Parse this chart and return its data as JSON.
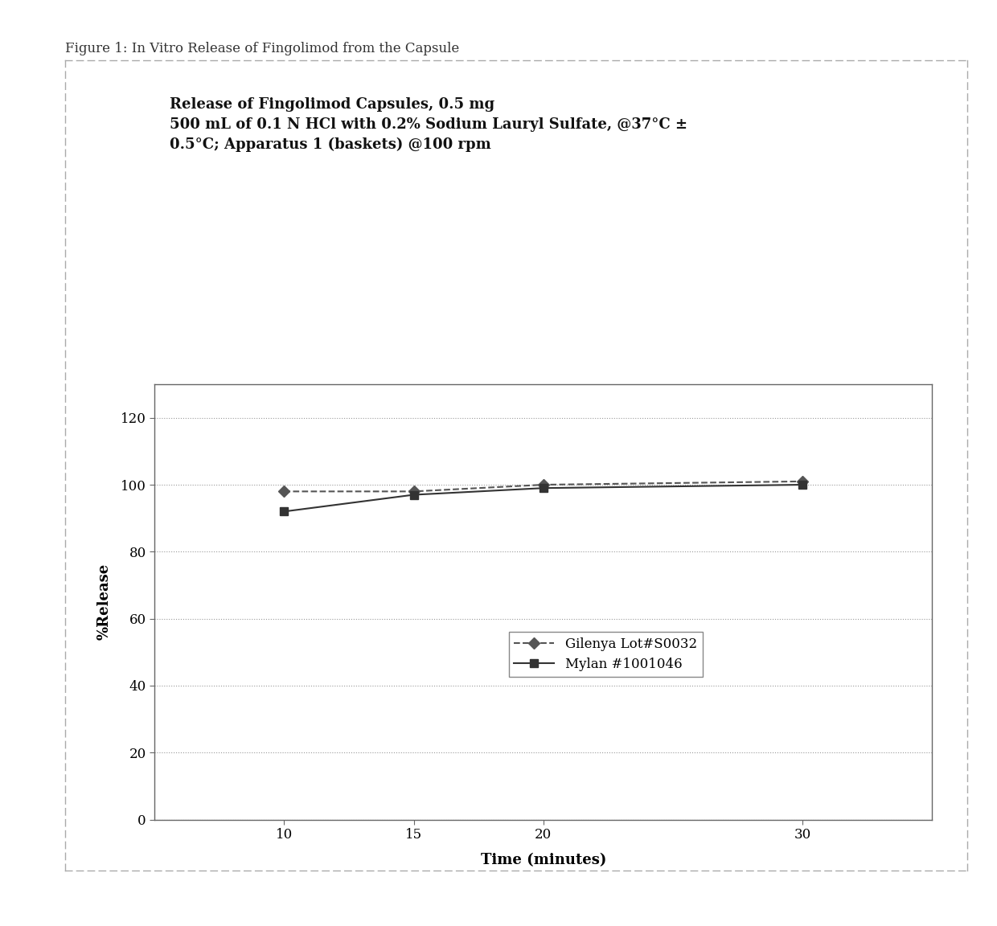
{
  "figure_title": "Figure 1: In Vitro Release of Fingolimod from the Capsule",
  "chart_title_line1": "Release of Fingolimod Capsules, 0.5 mg",
  "chart_title_line2": "500 mL of 0.1 N HCl with 0.2% Sodium Lauryl Sulfate, @37°C ±",
  "chart_title_line3": "0.5°C; Apparatus 1 (baskets) @100 rpm",
  "xlabel": "Time (minutes)",
  "ylabel": "%Release",
  "xlim": [
    5,
    35
  ],
  "ylim": [
    0,
    130
  ],
  "yticks": [
    0,
    20,
    40,
    60,
    80,
    100,
    120
  ],
  "xticks": [
    10,
    15,
    20,
    30
  ],
  "series": [
    {
      "label": "Gilenya Lot#S0032",
      "x": [
        10,
        15,
        20,
        30
      ],
      "y": [
        98,
        98,
        100,
        101
      ],
      "color": "#555555",
      "linestyle": "--",
      "marker": "D",
      "markersize": 7
    },
    {
      "label": "Mylan #1001046",
      "x": [
        10,
        15,
        20,
        30
      ],
      "y": [
        92,
        97,
        99,
        100
      ],
      "color": "#333333",
      "linestyle": "-",
      "marker": "s",
      "markersize": 7
    }
  ],
  "background_color": "#ffffff",
  "plot_bg_color": "#ffffff",
  "grid_color": "#999999",
  "outer_border_color": "#aaaaaa",
  "spine_color": "#666666",
  "figure_title_fontsize": 12,
  "chart_title_fontsize": 13,
  "tick_fontsize": 12,
  "axis_label_fontsize": 13,
  "legend_fontsize": 12
}
